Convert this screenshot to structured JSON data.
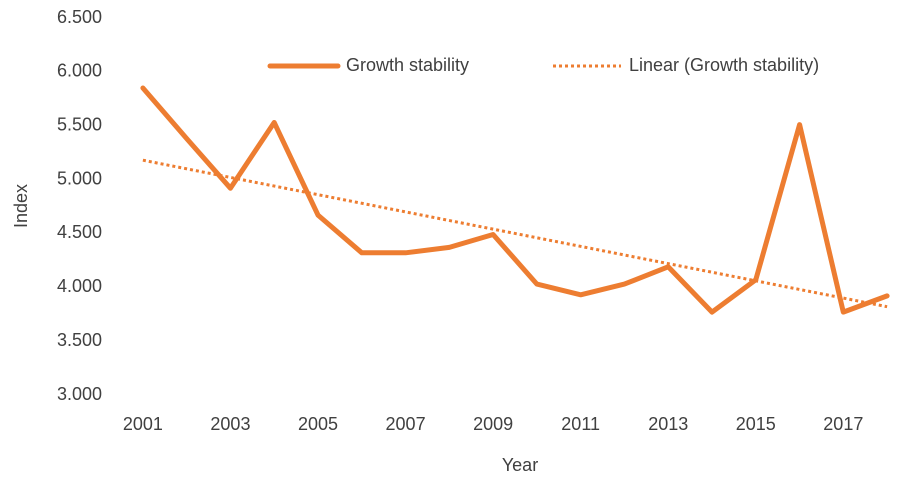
{
  "chart_data": {
    "type": "line",
    "x": [
      2001,
      2002,
      2003,
      2004,
      2005,
      2006,
      2007,
      2008,
      2009,
      2010,
      2011,
      2012,
      2013,
      2014,
      2015,
      2016,
      2017,
      2018
    ],
    "xlim": [
      2000.5,
      2018.5
    ],
    "xticks": [
      2001,
      2003,
      2005,
      2007,
      2009,
      2011,
      2013,
      2015,
      2017
    ],
    "ylim": [
      3,
      6.5
    ],
    "yticks": [
      {
        "value": 3,
        "label": "3.000"
      },
      {
        "value": 3.5,
        "label": "3.500"
      },
      {
        "value": 4,
        "label": "4.000"
      },
      {
        "value": 4.5,
        "label": "4.500"
      },
      {
        "value": 5,
        "label": "5.000"
      },
      {
        "value": 5.5,
        "label": "5.500"
      },
      {
        "value": 6,
        "label": "6.000"
      },
      {
        "value": 6.5,
        "label": "6.500"
      }
    ],
    "x_label": "Year",
    "y_label": "Index",
    "legend": "top",
    "series": [
      {
        "name": "Growth stability",
        "color": "#ed7d31",
        "style": "solid",
        "values": [
          5.85,
          5.38,
          4.92,
          5.53,
          4.67,
          4.32,
          4.32,
          4.37,
          4.49,
          4.03,
          3.93,
          4.03,
          4.19,
          3.77,
          4.07,
          5.51,
          3.77,
          3.92
        ]
      },
      {
        "name": "Linear (Growth stability)",
        "color": "#ed7d31",
        "style": "dotted",
        "x": [
          2001,
          2018
        ],
        "values": [
          5.18,
          3.82
        ]
      }
    ]
  }
}
